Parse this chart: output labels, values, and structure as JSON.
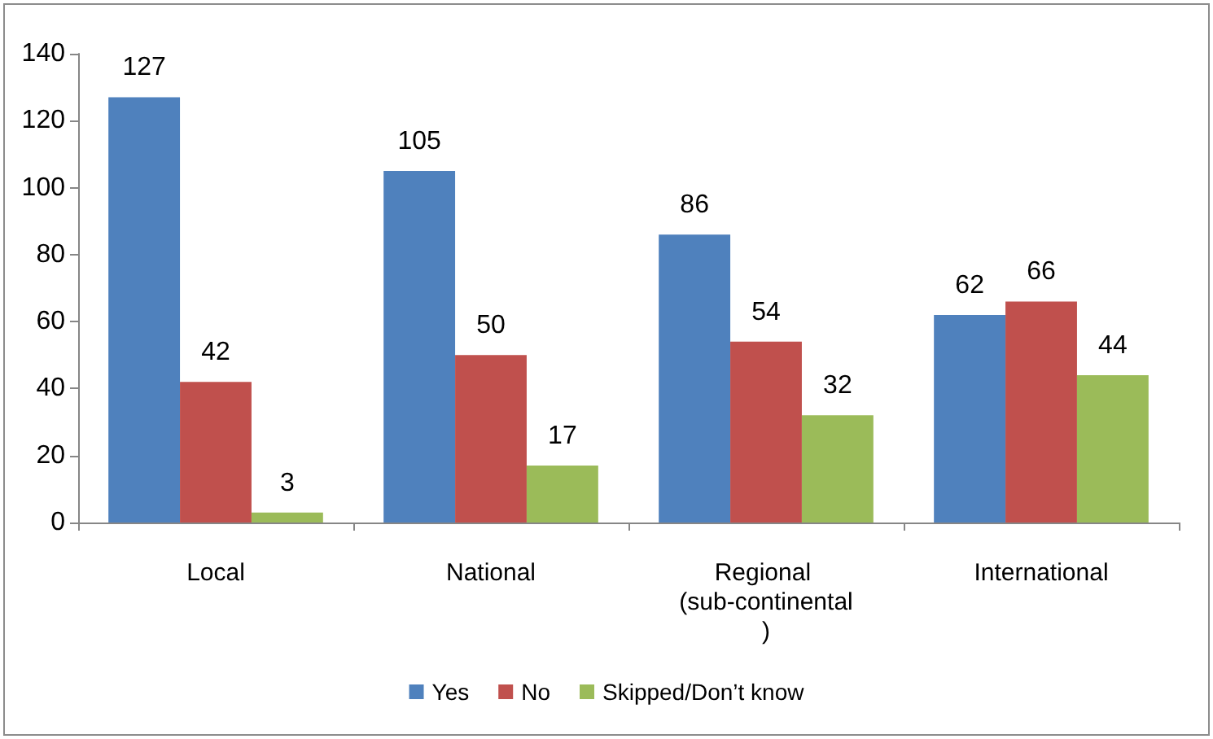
{
  "chart_data": {
    "type": "bar",
    "categories": [
      "Local",
      "National",
      "Regional (sub-continental)",
      "International"
    ],
    "series": [
      {
        "name": "Yes",
        "color": "#4f81bd",
        "values": [
          127,
          105,
          86,
          62
        ]
      },
      {
        "name": "No",
        "color": "#c0504d",
        "values": [
          42,
          50,
          54,
          66
        ]
      },
      {
        "name": "Skipped/Don’t know",
        "color": "#9bbb59",
        "values": [
          3,
          17,
          32,
          44
        ]
      }
    ],
    "ylim": [
      0,
      140
    ],
    "yticks": [
      0,
      20,
      40,
      60,
      80,
      100,
      120,
      140
    ],
    "grid": false,
    "legend": "bottom",
    "data_labels": true
  }
}
